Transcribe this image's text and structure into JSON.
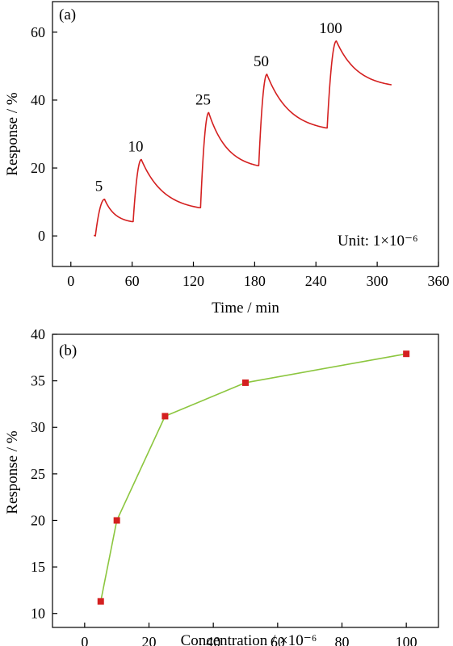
{
  "chart_data": [
    {
      "type": "line",
      "panel_label": "(a)",
      "xlabel": "Time / min",
      "ylabel": "Response / %",
      "xlim": [
        -18,
        360
      ],
      "ylim": [
        -9,
        69
      ],
      "xticks": [
        0,
        60,
        120,
        180,
        240,
        300,
        360
      ],
      "yticks": [
        0,
        20,
        40,
        60
      ],
      "unit_note": "Unit: 1×10⁻⁶",
      "line_color": "#d42020",
      "pulses": [
        {
          "label": "5",
          "t_on": 24,
          "t_peak": 33,
          "t_off": 60,
          "base": 0,
          "peak": 10.8,
          "end": 4.2
        },
        {
          "label": "10",
          "t_on": 61,
          "t_peak": 69,
          "t_off": 126,
          "base": 4.2,
          "peak": 22.5,
          "end": 8.3
        },
        {
          "label": "25",
          "t_on": 127,
          "t_peak": 135,
          "t_off": 183,
          "base": 8.3,
          "peak": 36.3,
          "end": 20.7
        },
        {
          "label": "50",
          "t_on": 184,
          "t_peak": 192,
          "t_off": 250,
          "base": 20.7,
          "peak": 47.6,
          "end": 31.8
        },
        {
          "label": "100",
          "t_on": 251,
          "t_peak": 260,
          "t_off": 314,
          "base": 31.8,
          "peak": 57.4,
          "end": 44.5
        }
      ]
    },
    {
      "type": "line",
      "panel_label": "(b)",
      "xlabel": "Concentration / ×10⁻⁶",
      "ylabel": "Response / %",
      "xlim": [
        -10,
        110
      ],
      "ylim": [
        8.5,
        40
      ],
      "xticks": [
        0,
        20,
        40,
        60,
        80,
        100
      ],
      "yticks": [
        10,
        15,
        20,
        25,
        30,
        35,
        40
      ],
      "line_color": "#8cc63f",
      "marker_color": "#d42020",
      "x": [
        5,
        10,
        25,
        50,
        100
      ],
      "y": [
        11.3,
        20.0,
        31.2,
        34.8,
        37.9
      ]
    }
  ]
}
